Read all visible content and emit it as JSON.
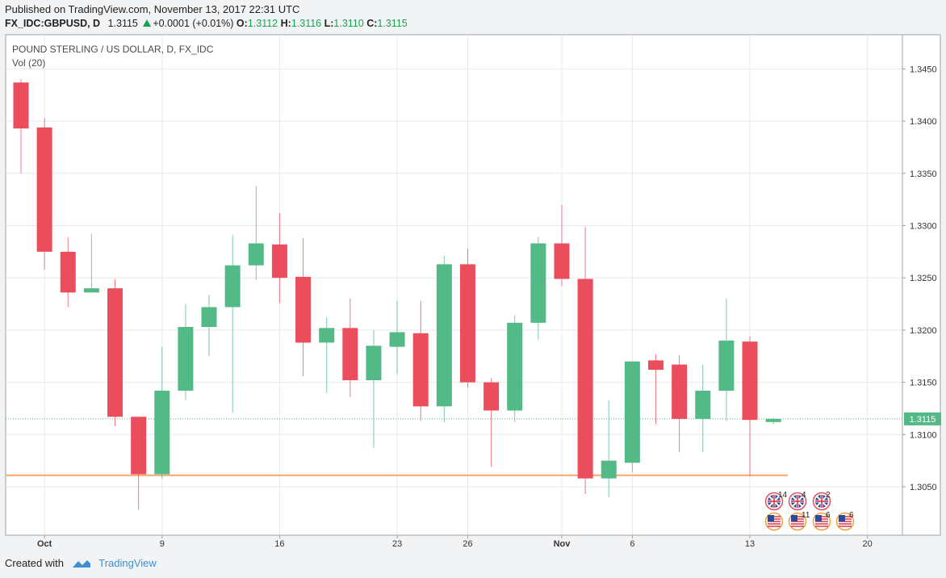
{
  "header": {
    "published": "Published on TradingView.com, November 13, 2017 22:31 UTC",
    "symbol": "FX_IDC:GBPUSD, D",
    "last": "1.3115",
    "change": "+0.0001 (+0.01%)",
    "o_label": "O:",
    "o_val": "1.3112",
    "h_label": "H:",
    "h_val": "1.3116",
    "l_label": "L:",
    "l_val": "1.3110",
    "c_label": "C:",
    "c_val": "1.3115"
  },
  "footer": {
    "created_with": "Created with",
    "brand": "TradingView"
  },
  "colors": {
    "up": "#53b987",
    "down": "#eb4d5c",
    "grid": "#e6eaee",
    "last_line": "#53b987",
    "vol_line": "#f6a86c"
  },
  "chart_data": {
    "type": "candlestick",
    "title": "POUND STERLING / US DOLLAR, D, FX_IDC",
    "indicator": "Vol (20)",
    "y_ticks": [
      "1.3050",
      "1.3100",
      "1.3150",
      "1.3200",
      "1.3250",
      "1.3300",
      "1.3350",
      "1.3400",
      "1.3450"
    ],
    "x_ticks": [
      {
        "i": 1,
        "label": "Oct"
      },
      {
        "i": 6,
        "label": "9"
      },
      {
        "i": 11,
        "label": "16"
      },
      {
        "i": 16,
        "label": "23"
      },
      {
        "i": 19,
        "label": "26"
      },
      {
        "i": 23,
        "label": "Nov"
      },
      {
        "i": 26,
        "label": "6"
      },
      {
        "i": 31,
        "label": "13"
      },
      {
        "i": 36,
        "label": "20"
      }
    ],
    "last_price": "1.3115",
    "vol_line_value": 1.3061,
    "candles": [
      {
        "o": 1.3437,
        "h": 1.344,
        "l": 1.335,
        "c": 1.3393
      },
      {
        "o": 1.3394,
        "h": 1.3403,
        "l": 1.3258,
        "c": 1.3275
      },
      {
        "o": 1.3275,
        "h": 1.3289,
        "l": 1.3222,
        "c": 1.3236
      },
      {
        "o": 1.3236,
        "h": 1.3292,
        "l": 1.3236,
        "c": 1.324
      },
      {
        "o": 1.324,
        "h": 1.3249,
        "l": 1.3108,
        "c": 1.3117
      },
      {
        "o": 1.3117,
        "h": 1.3117,
        "l": 1.3028,
        "c": 1.3062
      },
      {
        "o": 1.3062,
        "h": 1.3184,
        "l": 1.3058,
        "c": 1.3142
      },
      {
        "o": 1.3142,
        "h": 1.3225,
        "l": 1.3133,
        "c": 1.3203
      },
      {
        "o": 1.3203,
        "h": 1.3234,
        "l": 1.3175,
        "c": 1.3222
      },
      {
        "o": 1.3222,
        "h": 1.3291,
        "l": 1.3121,
        "c": 1.3262
      },
      {
        "o": 1.3262,
        "h": 1.3338,
        "l": 1.3248,
        "c": 1.3283
      },
      {
        "o": 1.3282,
        "h": 1.3312,
        "l": 1.3226,
        "c": 1.325
      },
      {
        "o": 1.3251,
        "h": 1.3288,
        "l": 1.3156,
        "c": 1.3188
      },
      {
        "o": 1.3188,
        "h": 1.3212,
        "l": 1.314,
        "c": 1.3202
      },
      {
        "o": 1.3202,
        "h": 1.323,
        "l": 1.3136,
        "c": 1.3152
      },
      {
        "o": 1.3152,
        "h": 1.32,
        "l": 1.3087,
        "c": 1.3185
      },
      {
        "o": 1.3184,
        "h": 1.3228,
        "l": 1.3158,
        "c": 1.3198
      },
      {
        "o": 1.3197,
        "h": 1.3228,
        "l": 1.3113,
        "c": 1.3127
      },
      {
        "o": 1.3127,
        "h": 1.3271,
        "l": 1.3112,
        "c": 1.3263
      },
      {
        "o": 1.3263,
        "h": 1.3278,
        "l": 1.3145,
        "c": 1.315
      },
      {
        "o": 1.315,
        "h": 1.3154,
        "l": 1.3069,
        "c": 1.3123
      },
      {
        "o": 1.3123,
        "h": 1.3214,
        "l": 1.3112,
        "c": 1.3207
      },
      {
        "o": 1.3207,
        "h": 1.3289,
        "l": 1.3191,
        "c": 1.3283
      },
      {
        "o": 1.3283,
        "h": 1.332,
        "l": 1.3242,
        "c": 1.3249
      },
      {
        "o": 1.3249,
        "h": 1.3299,
        "l": 1.3043,
        "c": 1.3058
      },
      {
        "o": 1.3058,
        "h": 1.3133,
        "l": 1.304,
        "c": 1.3075
      },
      {
        "o": 1.3073,
        "h": 1.3168,
        "l": 1.3064,
        "c": 1.317
      },
      {
        "o": 1.3171,
        "h": 1.3177,
        "l": 1.311,
        "c": 1.3162
      },
      {
        "o": 1.3167,
        "h": 1.3176,
        "l": 1.3083,
        "c": 1.3115
      },
      {
        "o": 1.3115,
        "h": 1.3167,
        "l": 1.3083,
        "c": 1.3142
      },
      {
        "o": 1.3142,
        "h": 1.323,
        "l": 1.3113,
        "c": 1.319
      },
      {
        "o": 1.3189,
        "h": 1.3194,
        "l": 1.306,
        "c": 1.3114
      },
      {
        "o": 1.3112,
        "h": 1.3116,
        "l": 1.311,
        "c": 1.3115
      }
    ],
    "event_markers": [
      {
        "row": 0,
        "flag": "uk",
        "label": "14"
      },
      {
        "row": 0,
        "flag": "uk",
        "label": "4"
      },
      {
        "row": 0,
        "flag": "uk",
        "label": "2"
      },
      {
        "row": 1,
        "flag": "us",
        "label": ""
      },
      {
        "row": 1,
        "flag": "us",
        "label": "11"
      },
      {
        "row": 1,
        "flag": "us",
        "label": "6"
      },
      {
        "row": 1,
        "flag": "us",
        "label": "6"
      }
    ]
  }
}
